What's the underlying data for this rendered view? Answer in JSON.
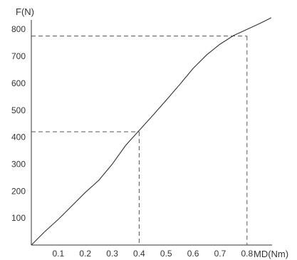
{
  "chart_data": {
    "type": "line",
    "title": "",
    "ylabel": "F(N)",
    "xlabel": "MD(Nm)",
    "xlim": [
      0,
      0.9
    ],
    "ylim": [
      0,
      850
    ],
    "x_ticks": [
      0.1,
      0.2,
      0.3,
      0.4,
      0.5,
      0.6,
      0.7,
      0.8
    ],
    "x_tick_labels": [
      "0.1",
      "0.2",
      "0.3",
      "0.4",
      "0.5",
      "0.6",
      "0.7",
      "0.8"
    ],
    "y_ticks": [
      100,
      200,
      300,
      400,
      500,
      600,
      700,
      800
    ],
    "y_tick_labels": [
      "100",
      "200",
      "300",
      "400",
      "500",
      "600",
      "700",
      "800"
    ],
    "grid": false,
    "series": [
      {
        "x": [
          0,
          0.05,
          0.1,
          0.15,
          0.2,
          0.25,
          0.3,
          0.35,
          0.4,
          0.45,
          0.5,
          0.55,
          0.6,
          0.65,
          0.7,
          0.75,
          0.8,
          0.85,
          0.89
        ],
        "y": [
          0,
          50,
          95,
          145,
          195,
          240,
          300,
          370,
          425,
          480,
          537,
          595,
          655,
          705,
          745,
          777,
          800,
          823,
          843
        ]
      }
    ],
    "reference_lines": [
      {
        "x": 0.4,
        "y": 420
      },
      {
        "x": 0.8,
        "y": 775
      }
    ],
    "line_color": "#333333",
    "dash_color": "#555555"
  }
}
